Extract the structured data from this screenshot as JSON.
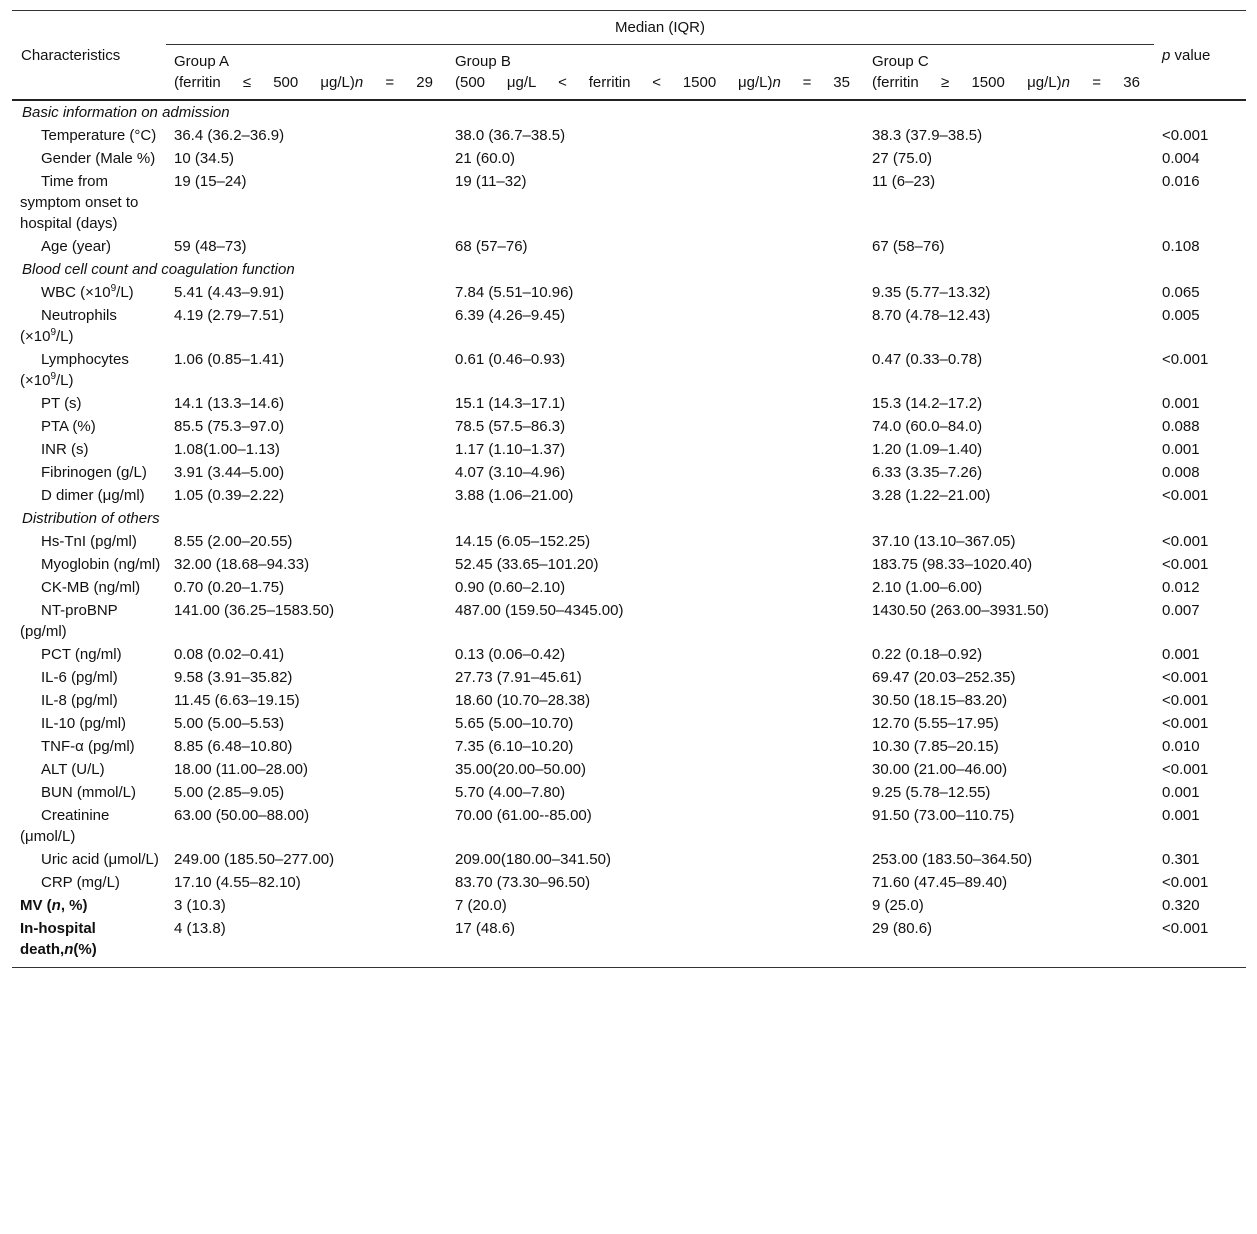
{
  "header": {
    "median_label": "Median (IQR)",
    "characteristics": "Characteristics",
    "p_value": "p value",
    "groups": [
      {
        "name": "Group A",
        "crit": [
          "(ferritin",
          "≤",
          "500",
          "μg/L)n",
          "=",
          "29"
        ]
      },
      {
        "name": "Group B",
        "crit": [
          "(500",
          "μg/L",
          "<",
          "ferritin",
          "<",
          "1500",
          "μg/L)n",
          "=",
          "35"
        ]
      },
      {
        "name": "Group C",
        "crit": [
          "(ferritin",
          "≥",
          "1500",
          "μg/L)n",
          "=",
          "36"
        ]
      }
    ]
  },
  "sections": [
    {
      "title": "Basic information on admission",
      "rows": [
        {
          "label": "Temperature (°C)",
          "a": "36.4 (36.2–36.9)",
          "b": "38.0 (36.7–38.5)",
          "c": "38.3 (37.9–38.5)",
          "p": "<0.001"
        },
        {
          "label": "Gender (Male %)",
          "a": "10 (34.5)",
          "b": "21 (60.0)",
          "c": "27 (75.0)",
          "p": "0.004"
        },
        {
          "label": "Time from symptom onset to hospital (days)",
          "a": "19 (15–24)",
          "b": "19 (11–32)",
          "c": "11 (6–23)",
          "p": "0.016"
        },
        {
          "label": "Age (year)",
          "a": "59 (48–73)",
          "b": "68 (57–76)",
          "c": "67 (58–76)",
          "p": "0.108"
        }
      ]
    },
    {
      "title": "Blood cell count and coagulation function",
      "rows": [
        {
          "label": "WBC (×10⁹/L)",
          "a": "5.41 (4.43–9.91)",
          "b": "7.84 (5.51–10.96)",
          "c": "9.35 (5.77–13.32)",
          "p": "0.065"
        },
        {
          "label": "Neutrophils (×10⁹/L)",
          "a": "4.19 (2.79–7.51)",
          "b": "6.39 (4.26–9.45)",
          "c": "8.70 (4.78–12.43)",
          "p": "0.005"
        },
        {
          "label": "Lymphocytes (×10⁹/L)",
          "a": "1.06 (0.85–1.41)",
          "b": "0.61 (0.46–0.93)",
          "c": "0.47 (0.33–0.78)",
          "p": "<0.001"
        },
        {
          "label": "PT (s)",
          "a": "14.1 (13.3–14.6)",
          "b": "15.1 (14.3–17.1)",
          "c": "15.3 (14.2–17.2)",
          "p": "0.001"
        },
        {
          "label": "PTA (%)",
          "a": "85.5 (75.3–97.0)",
          "b": "78.5 (57.5–86.3)",
          "c": "74.0 (60.0–84.0)",
          "p": "0.088"
        },
        {
          "label": "INR (s)",
          "a": "1.08(1.00–1.13)",
          "b": "1.17 (1.10–1.37)",
          "c": "1.20 (1.09–1.40)",
          "p": "0.001"
        },
        {
          "label": "Fibrinogen (g/L)",
          "a": "3.91 (3.44–5.00)",
          "b": "4.07 (3.10–4.96)",
          "c": "6.33 (3.35–7.26)",
          "p": "0.008"
        },
        {
          "label": "D dimer (μg/ml)",
          "a": "1.05 (0.39–2.22)",
          "b": "3.88 (1.06–21.00)",
          "c": "3.28 (1.22–21.00)",
          "p": "<0.001"
        }
      ]
    },
    {
      "title": "Distribution of others",
      "rows": [
        {
          "label": "Hs-TnI (pg/ml)",
          "a": "8.55 (2.00–20.55)",
          "b": "14.15 (6.05–152.25)",
          "c": "37.10 (13.10–367.05)",
          "p": "<0.001"
        },
        {
          "label": "Myoglobin (ng/ml)",
          "a": "32.00 (18.68–94.33)",
          "b": "52.45 (33.65–101.20)",
          "c": "183.75 (98.33–1020.40)",
          "p": "<0.001"
        },
        {
          "label": "CK-MB (ng/ml)",
          "a": "0.70 (0.20–1.75)",
          "b": "0.90 (0.60–2.10)",
          "c": "2.10 (1.00–6.00)",
          "p": "0.012"
        },
        {
          "label": "NT-proBNP (pg/ml)",
          "a": "141.00 (36.25–1583.50)",
          "b": "487.00 (159.50–4345.00)",
          "c": "1430.50 (263.00–3931.50)",
          "p": "0.007"
        },
        {
          "label": "PCT (ng/ml)",
          "a": "0.08 (0.02–0.41)",
          "b": "0.13 (0.06–0.42)",
          "c": "0.22 (0.18–0.92)",
          "p": "0.001"
        },
        {
          "label": "IL-6 (pg/ml)",
          "a": "9.58 (3.91–35.82)",
          "b": "27.73 (7.91–45.61)",
          "c": "69.47 (20.03–252.35)",
          "p": "<0.001"
        },
        {
          "label": "IL-8 (pg/ml)",
          "a": "11.45 (6.63–19.15)",
          "b": "18.60 (10.70–28.38)",
          "c": "30.50 (18.15–83.20)",
          "p": "<0.001"
        },
        {
          "label": "IL-10 (pg/ml)",
          "a": "5.00 (5.00–5.53)",
          "b": "5.65 (5.00–10.70)",
          "c": "12.70 (5.55–17.95)",
          "p": "<0.001"
        },
        {
          "label": "TNF-α (pg/ml)",
          "a": "8.85 (6.48–10.80)",
          "b": "7.35 (6.10–10.20)",
          "c": "10.30 (7.85–20.15)",
          "p": "0.010"
        },
        {
          "label": "ALT (U/L)",
          "a": "18.00 (11.00–28.00)",
          "b": "35.00(20.00–50.00)",
          "c": "30.00 (21.00–46.00)",
          "p": "<0.001"
        },
        {
          "label": "BUN (mmol/L)",
          "a": "5.00 (2.85–9.05)",
          "b": "5.70 (4.00–7.80)",
          "c": "9.25 (5.78–12.55)",
          "p": "0.001"
        },
        {
          "label": "Creatinine (μmol/L)",
          "a": "63.00 (50.00–88.00)",
          "b": "70.00 (61.00-‐85.00)",
          "c": "91.50 (73.00–110.75)",
          "p": "0.001"
        },
        {
          "label": "Uric acid (μmol/L)",
          "a": "249.00 (185.50–277.00)",
          "b": "209.00(180.00–341.50)",
          "c": "253.00 (183.50–364.50)",
          "p": "0.301"
        },
        {
          "label": "CRP (mg/L)",
          "a": "17.10 (4.55–82.10)",
          "b": "83.70 (73.30–96.50)",
          "c": "71.60 (47.45–89.40)",
          "p": "<0.001"
        }
      ]
    }
  ],
  "footer_rows": [
    {
      "label": "MV (n, %)",
      "a": "3 (10.3)",
      "b": "7 (20.0)",
      "c": "9 (25.0)",
      "p": "0.320"
    },
    {
      "label": "In-hospital death,n(%)",
      "a": "4 (13.8)",
      "b": "17 (48.6)",
      "c": "29 (80.6)",
      "p": "<0.001"
    }
  ]
}
